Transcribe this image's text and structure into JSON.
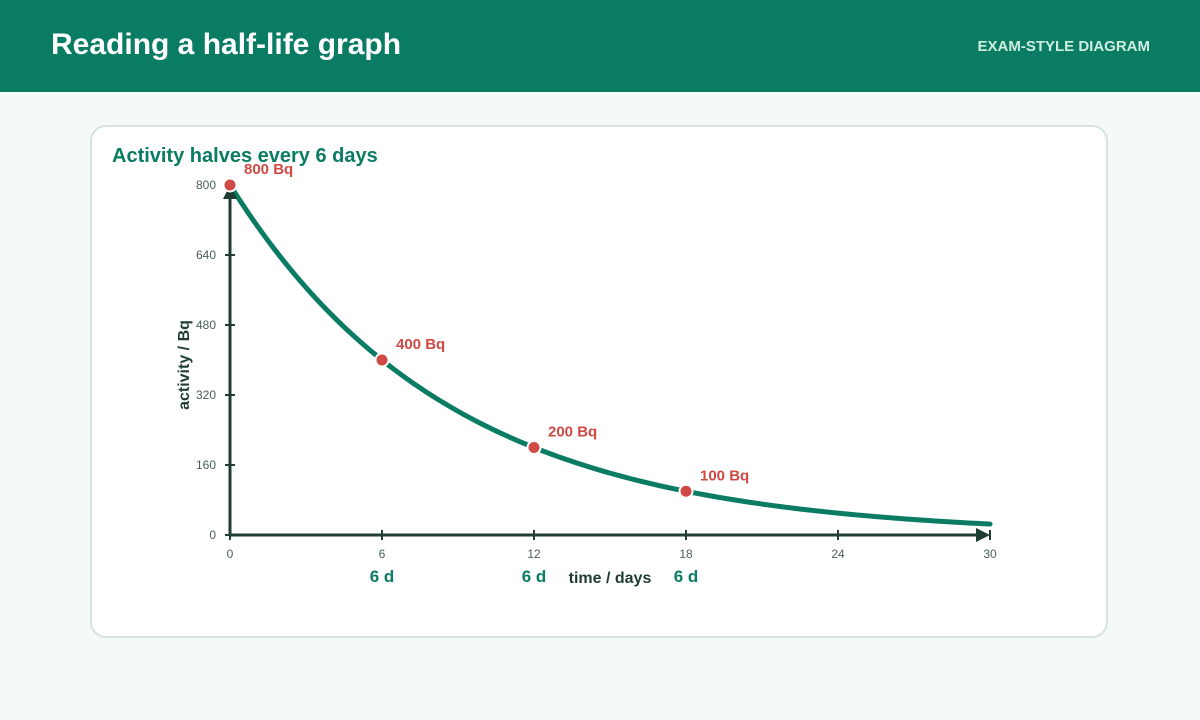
{
  "header": {
    "title": "Reading a half-life graph",
    "tag": "EXAM-STYLE DIAGRAM"
  },
  "card": {
    "title": "Activity halves every 6 days"
  },
  "chart_data": {
    "type": "line",
    "title": "Activity halves every 6 days",
    "xlabel": "time / days",
    "ylabel": "activity / Bq",
    "xlim": [
      0,
      30
    ],
    "ylim": [
      0,
      800
    ],
    "xticks": [
      0,
      6,
      12,
      18,
      24,
      30
    ],
    "yticks": [
      0,
      160,
      320,
      480,
      640,
      800
    ],
    "half_life": 6,
    "initial_activity": 800,
    "curve_end": 30,
    "points": [
      {
        "x": 0,
        "y": 800,
        "label": "800 Bq"
      },
      {
        "x": 6,
        "y": 400,
        "label": "400 Bq"
      },
      {
        "x": 12,
        "y": 200,
        "label": "200 Bq"
      },
      {
        "x": 18,
        "y": 100,
        "label": "100 Bq"
      }
    ],
    "interval_labels": [
      {
        "x": 6,
        "label": "6 d"
      },
      {
        "x": 12,
        "label": "6 d"
      },
      {
        "x": 18,
        "label": "6 d"
      }
    ],
    "grid": false,
    "colors": {
      "curve": "#0a7c63",
      "points": "#d04a45",
      "axis": "#1f3d33",
      "ticks_text": "#4a5f57",
      "interval_text": "#0a7c63"
    }
  }
}
